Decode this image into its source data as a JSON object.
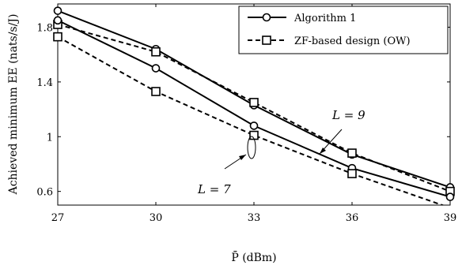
{
  "chart_data": {
    "type": "line",
    "xlabel": "P̄ (dBm)",
    "ylabel": "Achieved minimum EE (nats/s/J)",
    "x": [
      27,
      30,
      33,
      36,
      39
    ],
    "xticks": [
      "27",
      "30",
      "33",
      "36",
      "39"
    ],
    "yticks": [
      "0.6",
      "1",
      "1.4",
      "1.8"
    ],
    "xlim": [
      27,
      39
    ],
    "ylim": [
      0.5,
      1.97
    ],
    "grid": false,
    "legend_position": "top-right",
    "series": [
      {
        "name": "Algorithm 1",
        "group": "L = 9",
        "style": "solid",
        "marker": "circle",
        "values": [
          1.92,
          1.64,
          1.23,
          0.87,
          0.63
        ]
      },
      {
        "name": "ZF-based design (OW)",
        "group": "L = 9",
        "style": "dashed",
        "marker": "square",
        "values": [
          1.82,
          1.62,
          1.25,
          0.88,
          0.6
        ]
      },
      {
        "name": "Algorithm 1",
        "group": "L = 7",
        "style": "solid",
        "marker": "circle",
        "values": [
          1.85,
          1.5,
          1.08,
          0.77,
          0.56
        ]
      },
      {
        "name": "ZF-based design (OW)",
        "group": "L = 7",
        "style": "dashed",
        "marker": "square",
        "values": [
          1.73,
          1.33,
          1.01,
          0.73,
          0.48
        ]
      }
    ],
    "legend": [
      {
        "label": "Algorithm 1",
        "style": "solid",
        "marker": "circle"
      },
      {
        "label": "ZF-based design (OW)",
        "style": "dashed",
        "marker": "square"
      }
    ],
    "annotations": [
      {
        "text": "L = 9",
        "points_to_group": "L = 9"
      },
      {
        "text": "L = 7",
        "points_to_group": "L = 7"
      }
    ]
  }
}
